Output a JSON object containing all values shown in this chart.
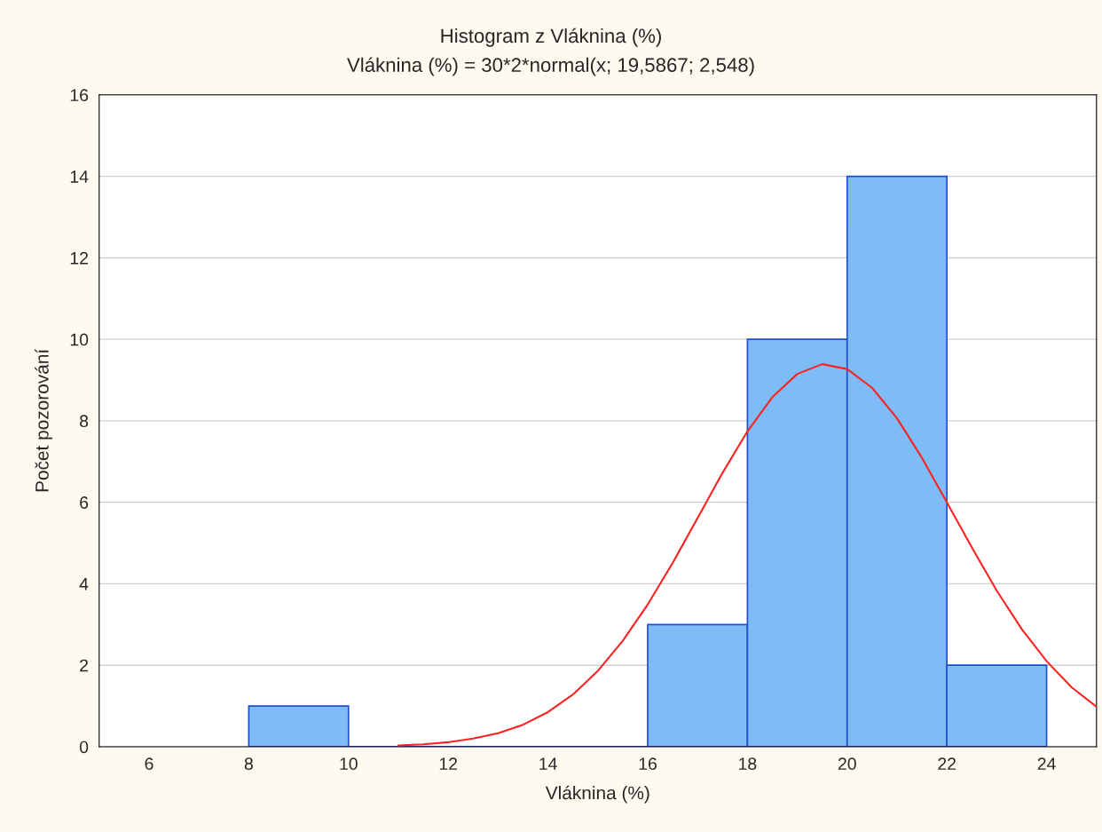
{
  "chart_data": {
    "type": "histogram",
    "title": "Histogram z Vláknina (%)",
    "subtitle": "Vláknina (%) = 30*2*normal(x; 19,5867; 2,548)",
    "xlabel": "Vláknina (%)",
    "ylabel": "Počet pozorování",
    "bins": [
      8,
      10,
      12,
      14,
      16,
      18,
      20,
      22,
      24
    ],
    "values": [
      1,
      0,
      0,
      0,
      3,
      10,
      14,
      2
    ],
    "color": "#7dbcf7",
    "series": [
      {
        "type": "line",
        "color": "#ff2020",
        "x": [
          11,
          11.5,
          12,
          12.5,
          13,
          13.5,
          14,
          14.5,
          15,
          15.5,
          16,
          16.5,
          17,
          17.5,
          18,
          18.5,
          19,
          19.5,
          20,
          20.5,
          21,
          21.5,
          22,
          22.5,
          23,
          23.5,
          24,
          24.5,
          25
        ],
        "values": [
          0.03,
          0.06,
          0.11,
          0.2,
          0.33,
          0.54,
          0.85,
          1.28,
          1.86,
          2.6,
          3.49,
          4.51,
          5.61,
          6.72,
          7.74,
          8.58,
          9.15,
          9.39,
          9.27,
          8.81,
          8.06,
          7.09,
          6.0,
          4.89,
          3.83,
          2.89,
          2.1,
          1.46,
          0.98
        ]
      }
    ],
    "xlim": [
      5,
      25
    ],
    "xticks": [
      6,
      8,
      10,
      12,
      14,
      16,
      18,
      20,
      22,
      24
    ],
    "ylim": [
      0,
      16
    ],
    "yticks": [
      0,
      2,
      4,
      6,
      8,
      10,
      12,
      14,
      16
    ],
    "grid": "y",
    "marker": "none",
    "line_style": "solid"
  }
}
